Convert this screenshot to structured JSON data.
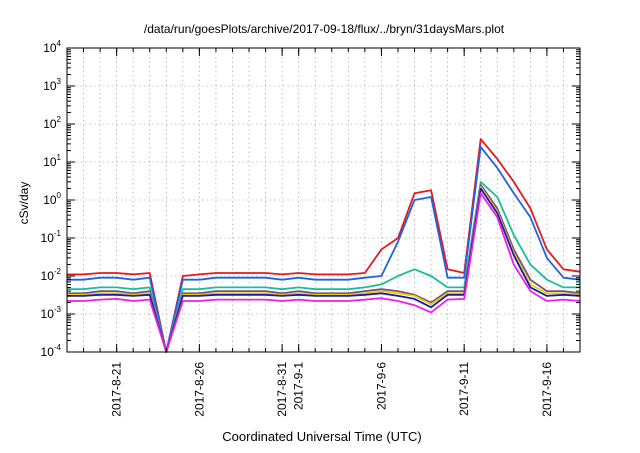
{
  "chart_data": {
    "type": "line",
    "title": "/data/run/goesPlots/archive/2017-09-18/flux/../bryn/31daysMars.plot",
    "xlabel": "Coordinated Universal Time (UTC)",
    "ylabel": "cSv/day",
    "y_scale": "log",
    "ylim": [
      0.0001,
      10000
    ],
    "xlim": [
      "2017-08-18",
      "2017-09-18"
    ],
    "grid": true,
    "legend": "none",
    "y_ticks": [
      {
        "value": 0.0001,
        "base": "10",
        "exp": "-4"
      },
      {
        "value": 0.001,
        "base": "10",
        "exp": "-3"
      },
      {
        "value": 0.01,
        "base": "10",
        "exp": "-2"
      },
      {
        "value": 0.1,
        "base": "10",
        "exp": "-1"
      },
      {
        "value": 1,
        "base": "10",
        "exp": "0"
      },
      {
        "value": 10,
        "base": "10",
        "exp": "1"
      },
      {
        "value": 100,
        "base": "10",
        "exp": "2"
      },
      {
        "value": 1000,
        "base": "10",
        "exp": "3"
      },
      {
        "value": 10000,
        "base": "10",
        "exp": "4"
      }
    ],
    "x_ticks": [
      {
        "date": "2017-08-21",
        "label": "2017-8-21"
      },
      {
        "date": "2017-08-26",
        "label": "2017-8-26"
      },
      {
        "date": "2017-08-31",
        "label": "2017-8-31"
      },
      {
        "date": "2017-09-01",
        "label": "2017-9-1"
      },
      {
        "date": "2017-09-06",
        "label": "2017-9-6"
      },
      {
        "date": "2017-09-11",
        "label": "2017-9-11"
      },
      {
        "date": "2017-09-16",
        "label": "2017-9-16"
      }
    ],
    "x": [
      "2017-08-18",
      "2017-08-19",
      "2017-08-20",
      "2017-08-21",
      "2017-08-22",
      "2017-08-23",
      "2017-08-24",
      "2017-08-25",
      "2017-08-26",
      "2017-08-27",
      "2017-08-28",
      "2017-08-29",
      "2017-08-30",
      "2017-08-31",
      "2017-09-01",
      "2017-09-02",
      "2017-09-03",
      "2017-09-04",
      "2017-09-05",
      "2017-09-06",
      "2017-09-07",
      "2017-09-08",
      "2017-09-09",
      "2017-09-10",
      "2017-09-11",
      "2017-09-12",
      "2017-09-13",
      "2017-09-14",
      "2017-09-15",
      "2017-09-16",
      "2017-09-17",
      "2017-09-18"
    ],
    "series": [
      {
        "color": "#e41a1c",
        "values": [
          0.011,
          0.011,
          0.012,
          0.012,
          0.011,
          0.012,
          5e-05,
          0.01,
          0.011,
          0.012,
          0.012,
          0.012,
          0.012,
          0.011,
          0.012,
          0.011,
          0.011,
          0.011,
          0.012,
          0.05,
          0.1,
          1.5,
          1.8,
          0.015,
          0.012,
          40,
          12,
          3,
          0.6,
          0.05,
          0.015,
          0.013
        ]
      },
      {
        "color": "#1f63e6",
        "values": [
          0.008,
          0.008,
          0.009,
          0.009,
          0.008,
          0.009,
          5e-05,
          0.008,
          0.008,
          0.009,
          0.009,
          0.009,
          0.009,
          0.008,
          0.009,
          0.008,
          0.008,
          0.008,
          0.009,
          0.01,
          0.08,
          1.0,
          1.2,
          0.009,
          0.009,
          25,
          7,
          1.5,
          0.35,
          0.03,
          0.009,
          0.008
        ]
      },
      {
        "color": "#1abc9c",
        "values": [
          0.0045,
          0.0045,
          0.005,
          0.005,
          0.0045,
          0.005,
          5e-05,
          0.0045,
          0.0045,
          0.005,
          0.005,
          0.005,
          0.005,
          0.0045,
          0.005,
          0.0045,
          0.0045,
          0.0045,
          0.005,
          0.006,
          0.01,
          0.015,
          0.01,
          0.005,
          0.005,
          3,
          1.2,
          0.12,
          0.02,
          0.008,
          0.005,
          0.005
        ]
      },
      {
        "color": "#7a4f7a",
        "values": [
          0.0035,
          0.0035,
          0.004,
          0.004,
          0.0035,
          0.004,
          5e-05,
          0.0035,
          0.0035,
          0.004,
          0.004,
          0.004,
          0.004,
          0.0035,
          0.004,
          0.0035,
          0.0035,
          0.0035,
          0.004,
          0.0045,
          0.004,
          0.0032,
          0.002,
          0.004,
          0.004,
          2.5,
          0.6,
          0.05,
          0.008,
          0.004,
          0.004,
          0.0035
        ]
      },
      {
        "color": "#e6d200",
        "values": [
          0.0032,
          0.0032,
          0.0035,
          0.0035,
          0.0032,
          0.0035,
          5e-05,
          0.0032,
          0.0032,
          0.0035,
          0.0035,
          0.0035,
          0.0035,
          0.0032,
          0.0035,
          0.0032,
          0.0032,
          0.0032,
          0.0035,
          0.004,
          0.0035,
          0.003,
          0.0018,
          0.0035,
          0.0035,
          2.2,
          0.5,
          0.04,
          0.006,
          0.0035,
          0.0035,
          0.0032
        ]
      },
      {
        "color": "#1a1ab3",
        "values": [
          0.003,
          0.003,
          0.0032,
          0.0032,
          0.003,
          0.0032,
          5e-05,
          0.003,
          0.003,
          0.0032,
          0.0032,
          0.0032,
          0.0032,
          0.003,
          0.0032,
          0.003,
          0.003,
          0.003,
          0.0032,
          0.0035,
          0.003,
          0.0025,
          0.0015,
          0.0032,
          0.0032,
          2,
          0.45,
          0.035,
          0.005,
          0.003,
          0.0032,
          0.003
        ]
      },
      {
        "color": "#ee1ee6",
        "values": [
          0.0022,
          0.0022,
          0.0024,
          0.0025,
          0.0022,
          0.0024,
          5e-05,
          0.0022,
          0.0022,
          0.0024,
          0.0024,
          0.0024,
          0.0024,
          0.0022,
          0.0024,
          0.0022,
          0.0022,
          0.0022,
          0.0024,
          0.0026,
          0.0022,
          0.0017,
          0.0011,
          0.0024,
          0.0025,
          1.5,
          0.35,
          0.02,
          0.004,
          0.0022,
          0.0024,
          0.0022
        ]
      }
    ]
  }
}
